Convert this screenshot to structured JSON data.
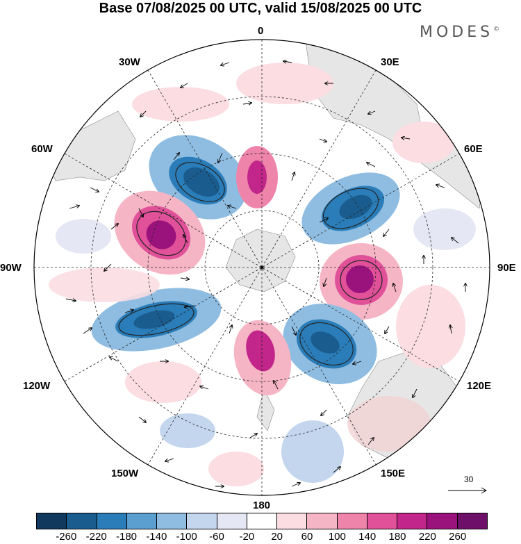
{
  "title": "Base 07/08/2025 00 UTC, valid 15/08/2025 00 UTC",
  "brand": "MODES",
  "brand_mark": "©",
  "longitude_labels": {
    "lon_0": "0",
    "lon_30e": "30E",
    "lon_60e": "60E",
    "lon_90e": "90E",
    "lon_120e": "120E",
    "lon_150e": "150E",
    "lon_180": "180",
    "lon_150w": "150W",
    "lon_120w": "120W",
    "lon_90w": "90W",
    "lon_60w": "60W",
    "lon_30w": "30W"
  },
  "reference_vector": "30",
  "colorbar": {
    "colors": [
      "#11385d",
      "#1b5c8e",
      "#2a7db8",
      "#5b9fd0",
      "#8fbde2",
      "#c4d6ee",
      "#e6e7f4",
      "#ffffff",
      "#fbdde2",
      "#f6b5c4",
      "#ee84aa",
      "#e0519a",
      "#c2268a",
      "#9a137c",
      "#6e106a"
    ],
    "tick_labels": [
      "-260",
      "-220",
      "-180",
      "-140",
      "-100",
      "-60",
      "-20",
      "20",
      "60",
      "100",
      "140",
      "180",
      "220",
      "260"
    ]
  }
}
